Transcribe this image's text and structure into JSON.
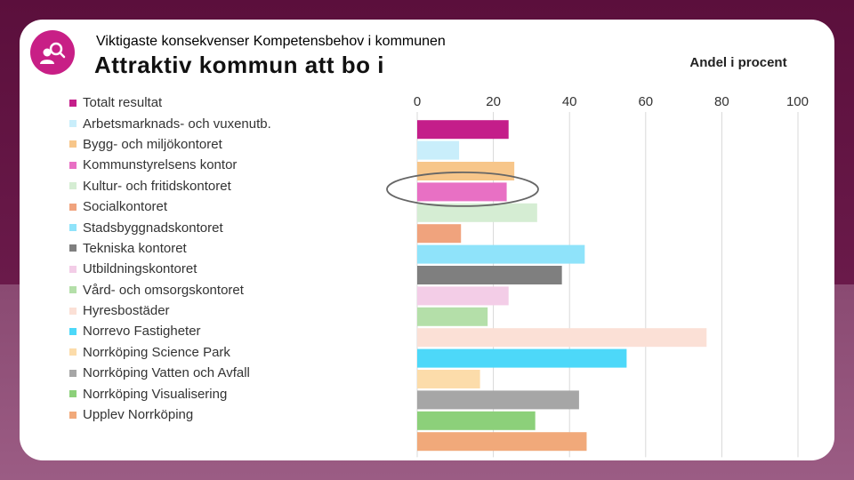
{
  "header": {
    "subtitle": "Viktigaste konsekvenser Kompetensbehov i kommunen",
    "title": "Attraktiv kommun att bo i",
    "logo_icon": "people-search-icon"
  },
  "chart_data": {
    "type": "bar",
    "orientation": "horizontal",
    "title": "Attraktiv kommun att bo i",
    "xlabel": "Andel i procent",
    "ylabel": "",
    "xlim": [
      0,
      100
    ],
    "xticks": [
      0,
      20,
      40,
      60,
      80,
      100
    ],
    "grid": true,
    "legend_position": "left",
    "highlighted_category": "Kommunstyrelsens kontor",
    "categories": [
      "Totalt resultat",
      "Arbetsmarknads- och vuxenutb.",
      "Bygg- och miljökontoret",
      "Kommunstyrelsens kontor",
      "Kultur- och fritidskontoret",
      "Socialkontoret",
      "Stadsbyggnadskontoret",
      "Tekniska kontoret",
      "Utbildningskontoret",
      "Vård- och omsorgskontoret",
      "Hyresbostäder",
      "Norrevo Fastigheter",
      "Norrköping Science Park",
      "Norrköping Vatten och Avfall",
      "Norrköping Visualisering",
      "Upplev Norrköping"
    ],
    "values": [
      24,
      11,
      25.5,
      23.5,
      31.5,
      11.5,
      44,
      38,
      24,
      18.5,
      76,
      55,
      16.5,
      42.5,
      31,
      44.5
    ],
    "colors": [
      "#c41e8a",
      "#c9eefb",
      "#f7c68a",
      "#e870c4",
      "#d5edd3",
      "#f0a37d",
      "#8fe3fa",
      "#7f7f7f",
      "#f3cde7",
      "#b4dfa9",
      "#fbe0d6",
      "#4dd8f9",
      "#fcdcaa",
      "#a6a6a6",
      "#8cd07a",
      "#f1a97a"
    ]
  }
}
